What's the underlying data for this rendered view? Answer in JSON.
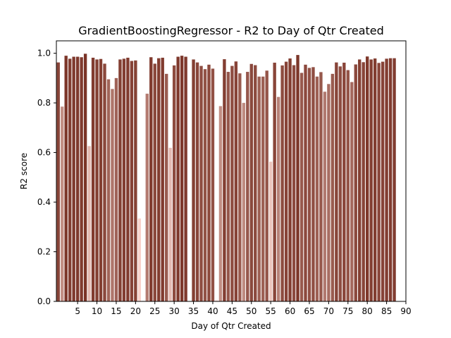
{
  "chart_data": {
    "type": "bar",
    "title": "GradientBoostingRegressor - R2 to Day of Qtr Created",
    "xlabel": "Day of Qtr Created",
    "ylabel": "R2 score",
    "xlim": [
      0,
      90
    ],
    "ylim": [
      0.0,
      1.05
    ],
    "xticks": [
      5,
      10,
      15,
      20,
      25,
      30,
      35,
      40,
      45,
      50,
      55,
      60,
      65,
      70,
      75,
      80,
      85,
      90
    ],
    "yticks": [
      "0.0",
      "0.2",
      "0.4",
      "0.6",
      "0.8",
      "1.0"
    ],
    "grid": false,
    "x": [
      0,
      1,
      2,
      3,
      4,
      5,
      6,
      7,
      8,
      9,
      10,
      11,
      12,
      13,
      14,
      15,
      16,
      17,
      18,
      19,
      20,
      21,
      22,
      23,
      24,
      25,
      26,
      27,
      28,
      29,
      30,
      31,
      32,
      33,
      35,
      36,
      37,
      38,
      39,
      40,
      41,
      42,
      43,
      44,
      45,
      46,
      47,
      48,
      49,
      50,
      51,
      52,
      53,
      54,
      55,
      56,
      57,
      58,
      59,
      60,
      61,
      62,
      63,
      64,
      65,
      66,
      67,
      68,
      69,
      70,
      71,
      72,
      73,
      74,
      75,
      76,
      77,
      78,
      79,
      80,
      81,
      82,
      83,
      84,
      85,
      86,
      87,
      88
    ],
    "values": [
      0.963,
      0.785,
      0.99,
      0.978,
      0.986,
      0.986,
      0.984,
      0.998,
      0.626,
      0.982,
      0.975,
      0.977,
      0.958,
      0.895,
      0.856,
      0.9,
      0.975,
      0.978,
      0.982,
      0.969,
      0.971,
      0.334,
      0.002,
      0.837,
      0.984,
      0.958,
      0.98,
      0.982,
      0.917,
      0.619,
      0.951,
      0.986,
      0.99,
      0.986,
      0.975,
      0.963,
      0.949,
      0.936,
      0.954,
      0.938,
      0.004,
      0.787,
      0.976,
      0.925,
      0.949,
      0.967,
      0.919,
      0.8,
      0.925,
      0.957,
      0.952,
      0.906,
      0.906,
      0.93,
      0.563,
      0.962,
      0.824,
      0.951,
      0.966,
      0.979,
      0.952,
      0.993,
      0.921,
      0.954,
      0.941,
      0.944,
      0.906,
      0.924,
      0.845,
      0.876,
      0.917,
      0.963,
      0.947,
      0.962,
      0.932,
      0.884,
      0.955,
      0.975,
      0.964,
      0.987,
      0.975,
      0.979,
      0.961,
      0.966,
      0.978,
      0.98,
      0.98,
      0.0
    ],
    "colors": {
      "low": "#f8d3cc",
      "high": "#7a3326",
      "axis": "#000000",
      "background": "#ffffff"
    }
  }
}
